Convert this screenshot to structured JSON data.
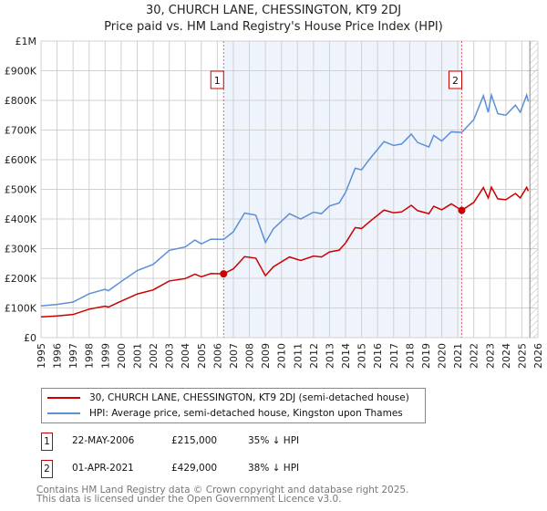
{
  "chart_data": {
    "type": "line",
    "title": "30, CHURCH LANE, CHESSINGTON, KT9 2DJ",
    "subtitle": "Price paid vs. HM Land Registry's House Price Index (HPI)",
    "xlim": [
      1995,
      2026
    ],
    "ylim": [
      0,
      1000000
    ],
    "y_ticks": [
      {
        "v": 0,
        "label": "£0"
      },
      {
        "v": 100000,
        "label": "£100K"
      },
      {
        "v": 200000,
        "label": "£200K"
      },
      {
        "v": 300000,
        "label": "£300K"
      },
      {
        "v": 400000,
        "label": "£400K"
      },
      {
        "v": 500000,
        "label": "£500K"
      },
      {
        "v": 600000,
        "label": "£600K"
      },
      {
        "v": 700000,
        "label": "£700K"
      },
      {
        "v": 800000,
        "label": "£800K"
      },
      {
        "v": 900000,
        "label": "£900K"
      },
      {
        "v": 1000000,
        "label": "£1M"
      }
    ],
    "x_ticks": [
      "1995",
      "1996",
      "1997",
      "1998",
      "1999",
      "2000",
      "2001",
      "2002",
      "2003",
      "2004",
      "2005",
      "2006",
      "2007",
      "2008",
      "2009",
      "2010",
      "2011",
      "2012",
      "2013",
      "2014",
      "2015",
      "2016",
      "2017",
      "2018",
      "2019",
      "2020",
      "2021",
      "2022",
      "2023",
      "2024",
      "2025",
      "2026"
    ],
    "grid": true,
    "shaded_range": [
      2006.39,
      2021.25
    ],
    "hatched_from": 2025.5,
    "series": [
      {
        "name": "30, CHURCH LANE, CHESSINGTON, KT9 2DJ (semi-detached house)",
        "color": "#cc0000",
        "x": [
          1995,
          1996,
          1997,
          1998,
          1999,
          1999.2,
          2000,
          2001,
          2002,
          2003,
          2004,
          2004.6,
          2005,
          2005.6,
          2006.39,
          2007,
          2007.7,
          2008.4,
          2009,
          2009.5,
          2010.5,
          2011.2,
          2012,
          2012.5,
          2013,
          2013.6,
          2014,
          2014.6,
          2015,
          2015.5,
          2016.4,
          2017,
          2017.5,
          2018.1,
          2018.5,
          2019.2,
          2019.5,
          2020,
          2020.6,
          2021.25,
          2022,
          2022.6,
          2022.9,
          2023.1,
          2023.5,
          2024,
          2024.6,
          2024.9,
          2025.3,
          2025.4
        ],
        "y": [
          70000,
          73000,
          78000,
          96000,
          106000,
          103000,
          123000,
          147000,
          161000,
          191000,
          199000,
          214000,
          205000,
          216000,
          215000,
          232000,
          273000,
          268000,
          209000,
          239000,
          272000,
          260000,
          275000,
          272000,
          289000,
          295000,
          319000,
          371000,
          368000,
          391000,
          430000,
          421000,
          424000,
          446000,
          428000,
          418000,
          443000,
          431000,
          451000,
          429000,
          456000,
          506000,
          471000,
          507000,
          468000,
          465000,
          486000,
          471000,
          507000,
          494000
        ]
      },
      {
        "name": "HPI: Average price, semi-detached house, Kingston upon Thames",
        "color": "#5b8fd6",
        "x": [
          1995,
          1996,
          1997,
          1998,
          1999,
          1999.2,
          2000,
          2001,
          2002,
          2003,
          2004,
          2004.6,
          2005,
          2005.6,
          2006.39,
          2007,
          2007.7,
          2008.4,
          2009,
          2009.5,
          2010.5,
          2011.2,
          2012,
          2012.5,
          2013,
          2013.6,
          2014,
          2014.6,
          2015,
          2015.5,
          2016.4,
          2017,
          2017.5,
          2018.1,
          2018.5,
          2019.2,
          2019.5,
          2020,
          2020.6,
          2021.25,
          2022,
          2022.6,
          2022.9,
          2023.1,
          2023.5,
          2024,
          2024.6,
          2024.9,
          2025.3,
          2025.4
        ],
        "y": [
          107000,
          112000,
          120000,
          148000,
          163000,
          158000,
          189000,
          226000,
          247000,
          294000,
          306000,
          329000,
          316000,
          332000,
          331000,
          357000,
          420000,
          413000,
          321000,
          367000,
          418000,
          400000,
          423000,
          418000,
          444000,
          454000,
          490000,
          571000,
          566000,
          602000,
          661000,
          648000,
          653000,
          686000,
          658000,
          643000,
          682000,
          663000,
          694000,
          692000,
          735000,
          816000,
          760000,
          818000,
          755000,
          750000,
          784000,
          760000,
          818000,
          796000
        ]
      }
    ],
    "annotations": [
      {
        "label": "1",
        "x": 2006.39,
        "y": 215000
      },
      {
        "label": "2",
        "x": 2021.25,
        "y": 429000
      }
    ]
  },
  "legend": [
    {
      "label": "30, CHURCH LANE, CHESSINGTON, KT9 2DJ (semi-detached house)",
      "color": "#cc0000"
    },
    {
      "label": "HPI: Average price, semi-detached house, Kingston upon Thames",
      "color": "#5b8fd6"
    }
  ],
  "transactions": [
    {
      "num": "1",
      "date": "22-MAY-2006",
      "price": "£215,000",
      "hpi": "35% ↓ HPI"
    },
    {
      "num": "2",
      "date": "01-APR-2021",
      "price": "£429,000",
      "hpi": "38% ↓ HPI"
    }
  ],
  "footer": [
    "Contains HM Land Registry data © Crown copyright and database right 2025.",
    "This data is licensed under the Open Government Licence v3.0."
  ]
}
